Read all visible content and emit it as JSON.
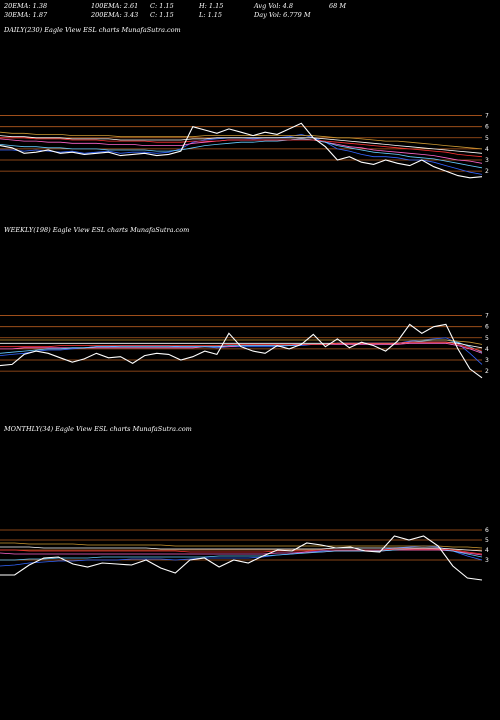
{
  "header": {
    "rows": [
      [
        "20EMA: 1.38",
        "100EMA: 2.61",
        "C: 1.15",
        "H: 1.15",
        "Avg Vol: 4.8",
        "68  M"
      ],
      [
        "30EMA: 1.87",
        "200EMA: 3.43",
        "C: 1.15",
        "L: 1.15",
        "Day Vol: 6.779 M",
        ""
      ]
    ]
  },
  "chart_data": [
    {
      "type": "line",
      "label": "DAILY(230) Eagle  View  ESL  charts MunafaSutra.com",
      "yticks": [
        "7",
        "6",
        "5",
        "4",
        "3",
        "2"
      ],
      "levels": [
        7,
        6,
        5,
        4,
        3,
        2
      ],
      "ylim": [
        1.2,
        7.5
      ],
      "x": [
        0,
        1,
        2,
        3,
        4,
        5,
        6,
        7,
        8,
        9,
        10,
        11,
        12,
        13,
        14,
        15,
        16,
        17,
        18,
        19,
        20,
        21,
        22,
        23,
        24,
        25,
        26,
        27,
        28,
        29,
        30,
        31,
        32,
        33,
        34,
        35,
        36,
        37,
        38,
        39,
        40
      ],
      "series": [
        {
          "color": "#ffffff",
          "values": [
            4.3,
            4.1,
            3.6,
            3.7,
            3.9,
            3.6,
            3.7,
            3.5,
            3.6,
            3.7,
            3.4,
            3.5,
            3.6,
            3.4,
            3.5,
            3.8,
            6.0,
            5.7,
            5.4,
            5.8,
            5.5,
            5.2,
            5.5,
            5.3,
            5.8,
            6.3,
            5.0,
            4.2,
            3.0,
            3.3,
            2.8,
            2.6,
            3.0,
            2.7,
            2.5,
            3.0,
            2.4,
            2.0,
            1.6,
            1.4,
            1.5
          ]
        },
        {
          "color": "#3366ff",
          "values": [
            3.9,
            3.9,
            3.8,
            3.9,
            3.8,
            3.7,
            3.8,
            3.6,
            3.7,
            3.8,
            3.6,
            3.7,
            3.7,
            3.6,
            3.7,
            4.0,
            4.6,
            4.8,
            4.9,
            5.0,
            5.0,
            4.9,
            5.0,
            5.0,
            5.1,
            5.3,
            5.0,
            4.6,
            4.0,
            3.8,
            3.5,
            3.3,
            3.3,
            3.2,
            3.0,
            3.0,
            2.8,
            2.5,
            2.2,
            1.9,
            1.7
          ]
        },
        {
          "color": "#ff66cc",
          "values": [
            4.9,
            4.8,
            4.7,
            4.7,
            4.6,
            4.6,
            4.5,
            4.5,
            4.5,
            4.4,
            4.4,
            4.4,
            4.3,
            4.3,
            4.3,
            4.3,
            4.5,
            4.6,
            4.7,
            4.8,
            4.8,
            4.8,
            4.8,
            4.8,
            4.8,
            4.9,
            4.8,
            4.6,
            4.4,
            4.2,
            4.1,
            3.9,
            3.8,
            3.7,
            3.6,
            3.5,
            3.4,
            3.2,
            3.0,
            2.9,
            2.7
          ]
        },
        {
          "color": "#66ccff",
          "values": [
            4.4,
            4.3,
            4.2,
            4.2,
            4.1,
            4.1,
            4.0,
            4.0,
            4.0,
            3.9,
            3.9,
            3.9,
            3.9,
            3.8,
            3.8,
            3.9,
            4.1,
            4.3,
            4.4,
            4.5,
            4.6,
            4.6,
            4.7,
            4.7,
            4.8,
            4.9,
            4.8,
            4.6,
            4.3,
            4.1,
            3.9,
            3.7,
            3.6,
            3.5,
            3.3,
            3.2,
            3.1,
            2.9,
            2.7,
            2.5,
            2.3
          ]
        },
        {
          "color": "#ffffff",
          "values": [
            5.2,
            5.1,
            5.1,
            5.0,
            5.0,
            5.0,
            4.9,
            4.9,
            4.9,
            4.9,
            4.8,
            4.8,
            4.8,
            4.8,
            4.8,
            4.8,
            4.9,
            4.9,
            5.0,
            5.0,
            5.0,
            5.0,
            5.0,
            5.0,
            5.0,
            5.0,
            5.0,
            4.9,
            4.8,
            4.7,
            4.6,
            4.5,
            4.4,
            4.3,
            4.2,
            4.1,
            4.0,
            3.9,
            3.8,
            3.7,
            3.6
          ]
        },
        {
          "color": "#cc9933",
          "values": [
            5.5,
            5.4,
            5.4,
            5.3,
            5.3,
            5.3,
            5.2,
            5.2,
            5.2,
            5.2,
            5.1,
            5.1,
            5.1,
            5.1,
            5.1,
            5.1,
            5.1,
            5.2,
            5.2,
            5.2,
            5.2,
            5.2,
            5.2,
            5.2,
            5.2,
            5.2,
            5.2,
            5.1,
            5.0,
            5.0,
            4.9,
            4.8,
            4.7,
            4.7,
            4.6,
            4.5,
            4.4,
            4.3,
            4.2,
            4.1,
            4.0
          ]
        },
        {
          "color": "#ff3333",
          "values": [
            5.0,
            5.0,
            5.0,
            4.9,
            4.9,
            4.9,
            4.8,
            4.8,
            4.8,
            4.7,
            4.7,
            4.7,
            4.7,
            4.6,
            4.6,
            4.6,
            4.7,
            4.7,
            4.7,
            4.8,
            4.8,
            4.8,
            4.8,
            4.8,
            4.8,
            4.8,
            4.8,
            4.7,
            4.6,
            4.5,
            4.4,
            4.3,
            4.2,
            4.1,
            4.0,
            3.9,
            3.8,
            3.7,
            3.5,
            3.4,
            3.3
          ]
        }
      ]
    },
    {
      "type": "line",
      "label": "WEEKLY(198) Eagle  View  ESL  charts MunafaSutra.com",
      "yticks": [
        "7",
        "6",
        "5",
        "4",
        "3",
        "2"
      ],
      "levels": [
        7,
        6,
        5,
        4,
        3,
        2
      ],
      "ylim": [
        1.2,
        7.5
      ],
      "x": [
        0,
        1,
        2,
        3,
        4,
        5,
        6,
        7,
        8,
        9,
        10,
        11,
        12,
        13,
        14,
        15,
        16,
        17,
        18,
        19,
        20,
        21,
        22,
        23,
        24,
        25,
        26,
        27,
        28,
        29,
        30,
        31,
        32,
        33,
        34,
        35,
        36,
        37,
        38,
        39,
        40
      ],
      "series": [
        {
          "color": "#ffffff",
          "values": [
            2.5,
            2.6,
            3.5,
            3.8,
            3.6,
            3.2,
            2.8,
            3.1,
            3.6,
            3.2,
            3.3,
            2.7,
            3.4,
            3.6,
            3.5,
            3.0,
            3.3,
            3.8,
            3.5,
            5.4,
            4.2,
            3.8,
            3.6,
            4.3,
            4.0,
            4.4,
            5.3,
            4.2,
            4.9,
            4.1,
            4.6,
            4.3,
            3.8,
            4.7,
            6.2,
            5.4,
            6.0,
            6.2,
            4.0,
            2.2,
            1.4
          ]
        },
        {
          "color": "#3366ff",
          "values": [
            3.4,
            3.5,
            3.6,
            3.8,
            3.9,
            3.9,
            4.0,
            4.1,
            4.2,
            4.2,
            4.3,
            4.3,
            4.3,
            4.3,
            4.3,
            4.2,
            4.2,
            4.2,
            4.1,
            4.2,
            4.2,
            4.2,
            4.2,
            4.2,
            4.3,
            4.3,
            4.4,
            4.4,
            4.5,
            4.5,
            4.5,
            4.5,
            4.5,
            4.5,
            4.7,
            4.8,
            4.9,
            5.0,
            4.5,
            3.6,
            2.6
          ]
        },
        {
          "color": "#ff66cc",
          "values": [
            4.0,
            4.0,
            4.1,
            4.1,
            4.1,
            4.1,
            4.1,
            4.1,
            4.1,
            4.1,
            4.1,
            4.1,
            4.1,
            4.1,
            4.1,
            4.1,
            4.1,
            4.2,
            4.2,
            4.2,
            4.3,
            4.3,
            4.3,
            4.3,
            4.3,
            4.4,
            4.4,
            4.4,
            4.4,
            4.4,
            4.4,
            4.4,
            4.4,
            4.4,
            4.5,
            4.5,
            4.5,
            4.5,
            4.3,
            4.0,
            3.6
          ]
        },
        {
          "color": "#66ccff",
          "values": [
            3.6,
            3.7,
            3.8,
            3.9,
            4.0,
            4.0,
            4.1,
            4.1,
            4.2,
            4.2,
            4.2,
            4.2,
            4.2,
            4.2,
            4.2,
            4.2,
            4.2,
            4.2,
            4.2,
            4.3,
            4.3,
            4.3,
            4.3,
            4.3,
            4.3,
            4.4,
            4.4,
            4.4,
            4.5,
            4.5,
            4.5,
            4.5,
            4.5,
            4.5,
            4.6,
            4.7,
            4.8,
            4.8,
            4.6,
            4.2,
            3.7
          ]
        },
        {
          "color": "#ffffff",
          "values": [
            4.5,
            4.5,
            4.5,
            4.5,
            4.5,
            4.5,
            4.5,
            4.5,
            4.5,
            4.5,
            4.5,
            4.5,
            4.5,
            4.5,
            4.5,
            4.5,
            4.5,
            4.5,
            4.5,
            4.5,
            4.5,
            4.5,
            4.5,
            4.5,
            4.5,
            4.5,
            4.5,
            4.5,
            4.5,
            4.5,
            4.5,
            4.5,
            4.5,
            4.5,
            4.6,
            4.6,
            4.6,
            4.6,
            4.5,
            4.3,
            4.1
          ]
        },
        {
          "color": "#cc9933",
          "values": [
            4.8,
            4.8,
            4.8,
            4.8,
            4.8,
            4.8,
            4.8,
            4.8,
            4.8,
            4.8,
            4.8,
            4.8,
            4.8,
            4.8,
            4.8,
            4.8,
            4.8,
            4.8,
            4.8,
            4.8,
            4.8,
            4.8,
            4.8,
            4.8,
            4.8,
            4.8,
            4.8,
            4.8,
            4.8,
            4.8,
            4.8,
            4.8,
            4.8,
            4.8,
            4.8,
            4.8,
            4.8,
            4.8,
            4.7,
            4.6,
            4.4
          ]
        },
        {
          "color": "#ff3333",
          "values": [
            4.2,
            4.2,
            4.2,
            4.2,
            4.2,
            4.3,
            4.3,
            4.3,
            4.3,
            4.3,
            4.3,
            4.3,
            4.3,
            4.3,
            4.3,
            4.3,
            4.3,
            4.3,
            4.3,
            4.4,
            4.4,
            4.4,
            4.4,
            4.4,
            4.4,
            4.4,
            4.4,
            4.4,
            4.5,
            4.5,
            4.5,
            4.5,
            4.5,
            4.5,
            4.6,
            4.6,
            4.6,
            4.6,
            4.4,
            4.1,
            3.8
          ]
        }
      ]
    },
    {
      "type": "line",
      "label": "MONTHLY(34) Eagle  View  ESL  charts MunafaSutra.com",
      "yticks": [
        "6",
        "5",
        "4",
        "3"
      ],
      "levels": [
        6,
        5,
        4,
        3
      ],
      "ylim": [
        0.5,
        7.5
      ],
      "x": [
        0,
        1,
        2,
        3,
        4,
        5,
        6,
        7,
        8,
        9,
        10,
        11,
        12,
        13,
        14,
        15,
        16,
        17,
        18,
        19,
        20,
        21,
        22,
        23,
        24,
        25,
        26,
        27,
        28,
        29,
        30,
        31,
        32,
        33
      ],
      "series": [
        {
          "color": "#ffffff",
          "values": [
            1.5,
            1.5,
            2.5,
            3.2,
            3.3,
            2.6,
            2.3,
            2.7,
            2.6,
            2.5,
            3.0,
            2.2,
            1.7,
            3.0,
            3.2,
            2.3,
            3.0,
            2.7,
            3.4,
            4.0,
            3.9,
            4.7,
            4.5,
            4.2,
            4.3,
            3.9,
            3.8,
            5.4,
            5.0,
            5.4,
            4.4,
            2.4,
            1.2,
            1.0
          ]
        },
        {
          "color": "#3366ff",
          "values": [
            2.4,
            2.5,
            2.7,
            2.8,
            2.9,
            2.9,
            3.0,
            3.0,
            3.0,
            3.1,
            3.1,
            3.1,
            3.0,
            3.1,
            3.2,
            3.2,
            3.2,
            3.2,
            3.3,
            3.5,
            3.6,
            3.8,
            3.9,
            4.0,
            4.0,
            4.0,
            4.0,
            4.2,
            4.3,
            4.4,
            4.3,
            3.9,
            3.4,
            3.0
          ]
        },
        {
          "color": "#ff66cc",
          "values": [
            3.7,
            3.6,
            3.6,
            3.6,
            3.6,
            3.6,
            3.6,
            3.6,
            3.6,
            3.6,
            3.6,
            3.6,
            3.6,
            3.6,
            3.6,
            3.6,
            3.6,
            3.6,
            3.6,
            3.7,
            3.7,
            3.8,
            3.8,
            3.9,
            3.9,
            3.9,
            3.9,
            4.0,
            4.0,
            4.0,
            4.0,
            3.9,
            3.7,
            3.5
          ]
        },
        {
          "color": "#66ccff",
          "values": [
            3.0,
            3.0,
            3.1,
            3.1,
            3.2,
            3.2,
            3.2,
            3.3,
            3.3,
            3.3,
            3.3,
            3.3,
            3.3,
            3.3,
            3.3,
            3.4,
            3.4,
            3.4,
            3.4,
            3.5,
            3.6,
            3.7,
            3.8,
            3.9,
            3.9,
            3.9,
            3.9,
            4.0,
            4.1,
            4.2,
            4.1,
            3.9,
            3.6,
            3.3
          ]
        },
        {
          "color": "#ffffff",
          "values": [
            4.3,
            4.3,
            4.3,
            4.2,
            4.2,
            4.2,
            4.2,
            4.2,
            4.2,
            4.2,
            4.2,
            4.1,
            4.1,
            4.1,
            4.1,
            4.1,
            4.1,
            4.1,
            4.1,
            4.1,
            4.1,
            4.1,
            4.1,
            4.2,
            4.2,
            4.2,
            4.2,
            4.2,
            4.2,
            4.2,
            4.2,
            4.1,
            4.0,
            3.9
          ]
        },
        {
          "color": "#cc9933",
          "values": [
            4.7,
            4.7,
            4.6,
            4.6,
            4.6,
            4.6,
            4.5,
            4.5,
            4.5,
            4.5,
            4.5,
            4.5,
            4.4,
            4.4,
            4.4,
            4.4,
            4.4,
            4.4,
            4.4,
            4.4,
            4.4,
            4.4,
            4.4,
            4.4,
            4.4,
            4.4,
            4.4,
            4.4,
            4.4,
            4.4,
            4.4,
            4.3,
            4.3,
            4.2
          ]
        },
        {
          "color": "#ff3333",
          "values": [
            4.0,
            4.0,
            3.9,
            3.9,
            3.9,
            3.9,
            3.9,
            3.9,
            3.9,
            3.9,
            3.9,
            3.9,
            3.9,
            3.8,
            3.8,
            3.8,
            3.8,
            3.8,
            3.8,
            3.9,
            3.9,
            3.9,
            4.0,
            4.0,
            4.0,
            4.0,
            4.0,
            4.1,
            4.1,
            4.1,
            4.1,
            4.0,
            3.8,
            3.6
          ]
        }
      ]
    }
  ]
}
